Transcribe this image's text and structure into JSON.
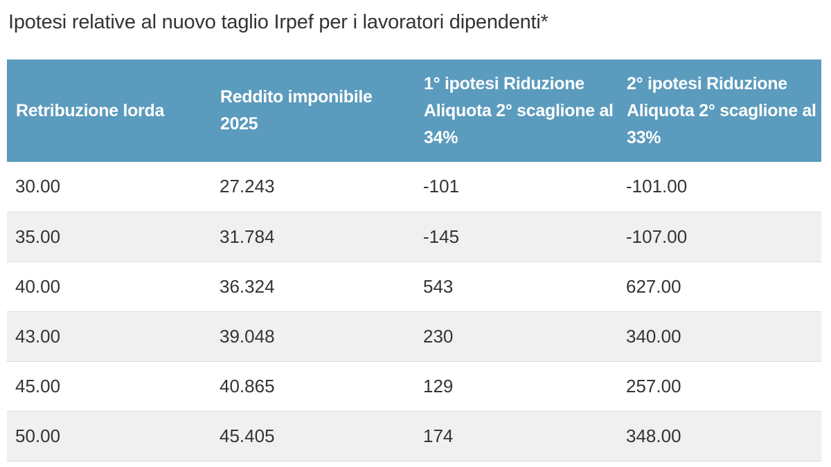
{
  "title": "Ipotesi relative al nuovo taglio Irpef per i lavoratori dipendenti*",
  "table": {
    "headers": [
      "Retribuzione lorda",
      "Reddito imponibile 2025",
      "1° ipotesi Riduzione Aliquota 2° scaglione al 34%",
      "2° ipotesi Riduzione Aliquota 2° scaglione al 33%"
    ],
    "rows": [
      [
        "30.00",
        "27.243",
        "-101",
        "-101.00"
      ],
      [
        "35.00",
        "31.784",
        "-145",
        "-107.00"
      ],
      [
        "40.00",
        "36.324",
        "543",
        "627.00"
      ],
      [
        "43.00",
        "39.048",
        "230",
        "340.00"
      ],
      [
        "45.00",
        "40.865",
        "129",
        "257.00"
      ],
      [
        "50.00",
        "45.405",
        "174",
        "348.00"
      ]
    ]
  },
  "colors": {
    "header_bg": "#5b9bbd",
    "header_text": "#ffffff",
    "row_alt_bg": "#f0f0f0",
    "text": "#333333"
  }
}
